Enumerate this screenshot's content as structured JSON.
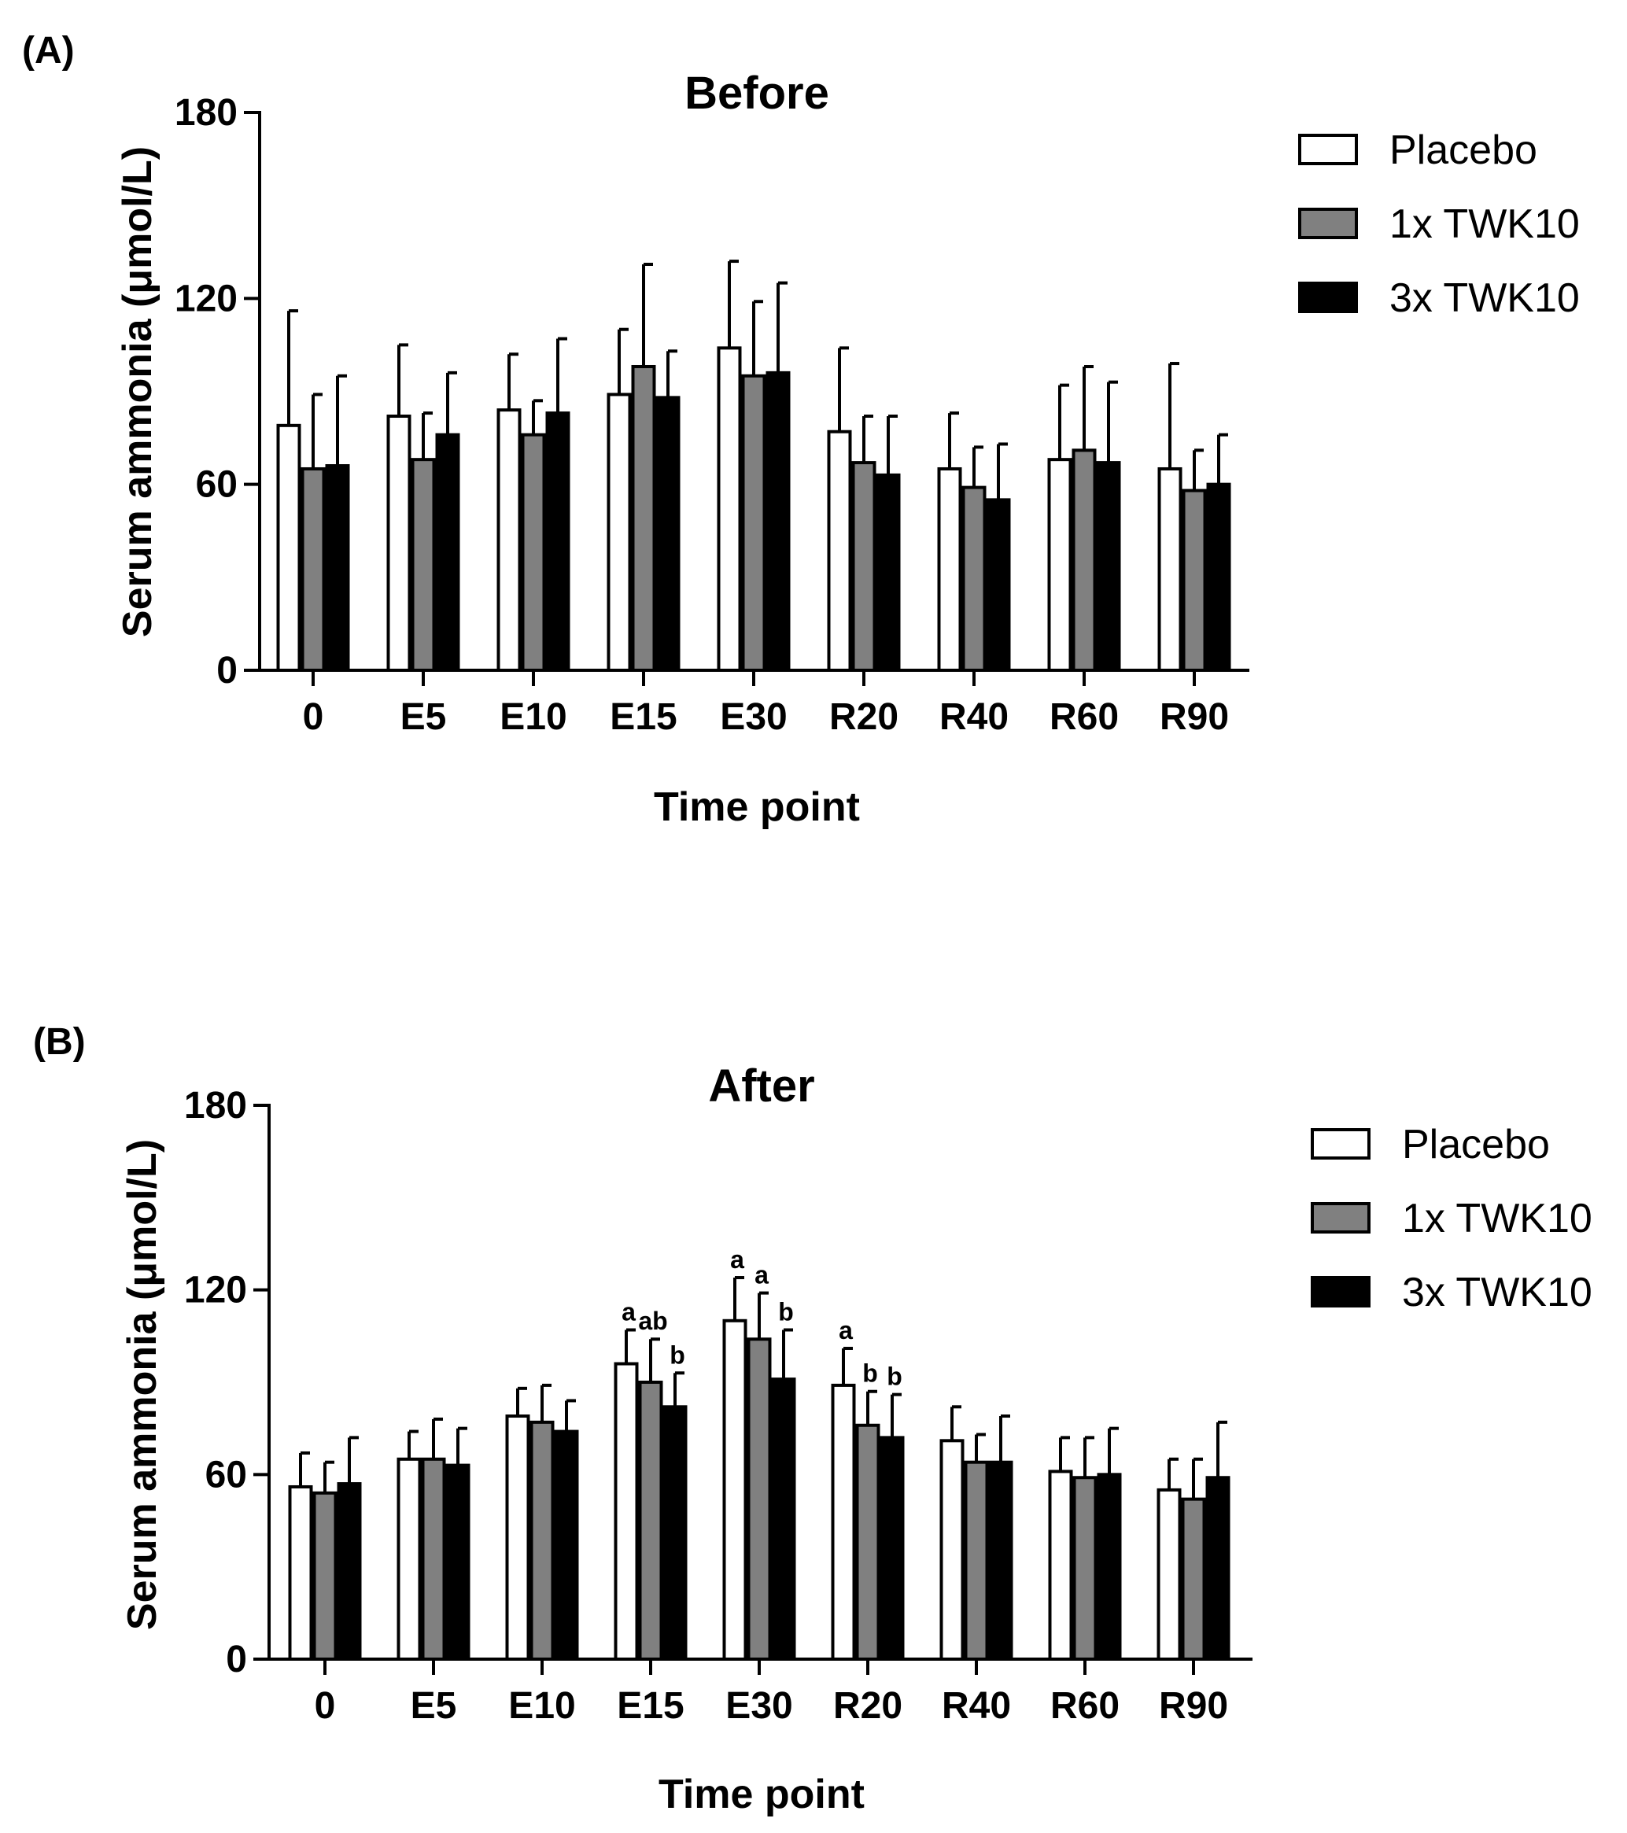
{
  "chart_data": [
    {
      "panel": "(A)",
      "type": "bar",
      "title": "Before",
      "xlabel": "Time point",
      "ylabel": "Serum ammonia (μmol/L)",
      "ylim": [
        0,
        180
      ],
      "yticks": [
        0,
        60,
        120,
        180
      ],
      "categories": [
        "0",
        "E5",
        "E10",
        "E15",
        "E30",
        "R20",
        "R40",
        "R60",
        "R90"
      ],
      "legend": {
        "position": "top-right"
      },
      "series": [
        {
          "name": "Placebo",
          "color": "#ffffff",
          "values": [
            79,
            82,
            84,
            89,
            104,
            77,
            65,
            68,
            65
          ],
          "errors": [
            37,
            23,
            18,
            21,
            28,
            27,
            18,
            24,
            34
          ],
          "labels": [
            "",
            "",
            "",
            "",
            "",
            "",
            "",
            "",
            ""
          ]
        },
        {
          "name": "1x TWK10",
          "color": "#808080",
          "values": [
            65,
            68,
            76,
            98,
            95,
            67,
            59,
            71,
            58
          ],
          "errors": [
            24,
            15,
            11,
            33,
            24,
            15,
            13,
            27,
            13
          ],
          "labels": [
            "",
            "",
            "",
            "",
            "",
            "",
            "",
            "",
            ""
          ]
        },
        {
          "name": "3x TWK10",
          "color": "#000000",
          "values": [
            66,
            76,
            83,
            88,
            96,
            63,
            55,
            67,
            60
          ],
          "errors": [
            29,
            20,
            24,
            15,
            29,
            19,
            18,
            26,
            16
          ],
          "labels": [
            "",
            "",
            "",
            "",
            "",
            "",
            "",
            "",
            ""
          ]
        }
      ]
    },
    {
      "panel": "(B)",
      "type": "bar",
      "title": "After",
      "xlabel": "Time point",
      "ylabel": "Serum ammonia (μmol/L)",
      "ylim": [
        0,
        180
      ],
      "yticks": [
        0,
        60,
        120,
        180
      ],
      "categories": [
        "0",
        "E5",
        "E10",
        "E15",
        "E30",
        "R20",
        "R40",
        "R60",
        "R90"
      ],
      "legend": {
        "position": "top-right"
      },
      "series": [
        {
          "name": "Placebo",
          "color": "#ffffff",
          "values": [
            56,
            65,
            79,
            96,
            110,
            89,
            71,
            61,
            55
          ],
          "errors": [
            11,
            9,
            9,
            11,
            14,
            12,
            11,
            11,
            10
          ],
          "labels": [
            "",
            "",
            "",
            "a",
            "a",
            "a",
            "",
            "",
            ""
          ]
        },
        {
          "name": "1x TWK10",
          "color": "#808080",
          "values": [
            54,
            65,
            77,
            90,
            104,
            76,
            64,
            59,
            52
          ],
          "errors": [
            10,
            13,
            12,
            14,
            15,
            11,
            9,
            13,
            13
          ],
          "labels": [
            "",
            "",
            "",
            "ab",
            "a",
            "b",
            "",
            "",
            ""
          ]
        },
        {
          "name": "3x TWK10",
          "color": "#000000",
          "values": [
            57,
            63,
            74,
            82,
            91,
            72,
            64,
            60,
            59
          ],
          "errors": [
            15,
            12,
            10,
            11,
            16,
            14,
            15,
            15,
            18
          ],
          "labels": [
            "",
            "",
            "",
            "b",
            "b",
            "b",
            "",
            "",
            ""
          ]
        }
      ]
    }
  ]
}
